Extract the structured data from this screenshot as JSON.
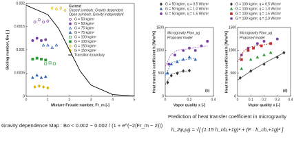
{
  "chart_data": [
    {
      "type": "scatter",
      "x_label": "Mixture Froude number, Fr_m [-]",
      "y_label": "Boiling number, Bo [-]",
      "annotations": [
        "Current",
        "Closed symbols: Gravity dependent",
        "Open symbols: Gravity independent"
      ],
      "xlim": [
        0,
        5
      ],
      "xticks": [
        0,
        1,
        2,
        3,
        4,
        5
      ],
      "ylim": [
        0,
        0.002
      ],
      "yticks": [
        0,
        0.0005,
        0.001,
        0.0015,
        0.002
      ],
      "series": [
        {
          "name": "G = 50 kg/m²",
          "color": "#7b3fa0",
          "marker": "circle",
          "filled": false,
          "x": [
            0.4,
            0.6,
            0.8,
            1.0
          ],
          "values": [
            0.0016,
            0.00165,
            0.0016,
            0.00162
          ]
        },
        {
          "name": "G = 50 kg/m²",
          "color": "#7b3fa0",
          "marker": "circle",
          "filled": true,
          "x": [
            0.3,
            0.5,
            0.7,
            0.9
          ],
          "values": [
            0.0012,
            0.00125,
            0.0012,
            0.00122
          ]
        },
        {
          "name": "G = 75 kg/m²",
          "color": "#2e5fb0",
          "marker": "triangle",
          "filled": false,
          "x": [
            0.8,
            1.0,
            1.2,
            1.4
          ],
          "values": [
            0.0011,
            0.0011,
            0.00105,
            0.0011
          ]
        },
        {
          "name": "G = 75 kg/m²",
          "color": "#2e5fb0",
          "marker": "triangle",
          "filled": true,
          "x": [
            0.3,
            0.5,
            0.7,
            0.9
          ],
          "values": [
            0.0004,
            0.00045,
            0.0004,
            0.00042
          ]
        },
        {
          "name": "G = 100 kg/m²",
          "color": "#2e9a3a",
          "marker": "square",
          "filled": false,
          "x": [
            0.9,
            1.1,
            1.3
          ],
          "values": [
            0.0007,
            0.00072,
            0.0007
          ]
        },
        {
          "name": "G = 100 kg/m²",
          "color": "#2e9a3a",
          "marker": "square",
          "filled": true,
          "x": [
            0.3,
            0.5,
            0.7,
            0.9
          ],
          "values": [
            0.0008,
            0.00082,
            0.0008,
            0.00078
          ]
        },
        {
          "name": "G = 150 kg/m²",
          "color": "#d8b400",
          "marker": "diamond",
          "filled": false,
          "x": [
            1.2,
            1.4,
            1.6,
            1.8
          ],
          "values": [
            0.0019,
            0.00188,
            0.0019,
            0.00185
          ]
        },
        {
          "name": "G = 150 kg/m²",
          "color": "#d8b400",
          "marker": "diamond",
          "filled": true,
          "x": [
            0.4,
            0.6,
            0.8,
            1.0
          ],
          "values": [
            0.0002,
            0.00022,
            0.0002,
            0.00018
          ]
        },
        {
          "name": "Transition boundary",
          "color": "#000000",
          "marker": "line",
          "x": [
            0,
            1,
            1.5,
            2,
            2.5,
            3,
            4,
            5
          ],
          "values": [
            0.00196,
            0.00176,
            0.00146,
            0.001,
            0.00054,
            0.00024,
            3.6e-05,
            5e-06
          ]
        }
      ]
    },
    {
      "type": "scatter",
      "x_label": "Vapor quality  x  [-]",
      "y_label": "Heat transfer coefficient  h  [W/m²K]",
      "annotations": [
        "Microgravity Flow_μg",
        "Proposed model",
        "(b)"
      ],
      "xlim": [
        0,
        0.4
      ],
      "xticks": [
        0,
        0.2,
        0.4
      ],
      "ylim": [
        0,
        1500
      ],
      "yticks": [
        0,
        500,
        1000,
        1500
      ],
      "series": [
        {
          "name": "G = 50 kg/m², q = 0.5 W/cm²",
          "color": "#333333",
          "marker": "diamond",
          "filled": true,
          "x": [
            0.02,
            0.05,
            0.1,
            0.15,
            0.2
          ],
          "values": [
            300,
            450,
            500,
            550,
            560
          ]
        },
        {
          "name": "G = 50 kg/m², q = 1.0 W/cm²",
          "color": "#2e5fb0",
          "marker": "triangle",
          "filled": true,
          "x": [
            0.02,
            0.05,
            0.1,
            0.15,
            0.2,
            0.25
          ],
          "values": [
            500,
            700,
            750,
            800,
            850,
            800
          ]
        },
        {
          "name": "G = 50 kg/m², q = 1.5 W/cm²",
          "color": "#7b3fa0",
          "marker": "circle",
          "filled": true,
          "x": [
            0.03,
            0.08,
            0.15,
            0.2,
            0.25,
            0.3,
            0.35
          ],
          "values": [
            700,
            900,
            1000,
            1050,
            1000,
            1100,
            1200
          ]
        },
        {
          "color": "#555555",
          "marker": "line",
          "dash": true,
          "x": [
            0,
            0.05,
            0.1,
            0.2
          ],
          "values": [
            250,
            480,
            520,
            560
          ]
        },
        {
          "color": "#4a8fd8",
          "marker": "line",
          "dash": true,
          "x": [
            0,
            0.05,
            0.1,
            0.25
          ],
          "values": [
            450,
            720,
            780,
            820
          ]
        },
        {
          "color": "#b06ad0",
          "marker": "line",
          "dash": true,
          "x": [
            0,
            0.05,
            0.1,
            0.35
          ],
          "values": [
            650,
            920,
            1000,
            1100
          ]
        }
      ]
    },
    {
      "type": "scatter",
      "x_label": "Vapor quality  x  [-]",
      "y_label": "Heat transfer coefficient  h  [W/m²K]",
      "annotations": [
        "Microgravity Flow_μg",
        "Proposed model",
        "(d)"
      ],
      "xlim": [
        0,
        0.4
      ],
      "xticks": [
        0,
        0.1,
        0.2,
        0.3,
        0.4
      ],
      "ylim": [
        0,
        1500
      ],
      "yticks": [
        0,
        500,
        1000,
        1500
      ],
      "series": [
        {
          "name": "G = 100 kg/m², q = 0.5 W/cm²",
          "color": "#333333",
          "marker": "diamond",
          "filled": true,
          "x": [
            0.02,
            0.1,
            0.2,
            0.3,
            0.35
          ],
          "values": [
            400,
            550,
            700,
            850,
            950
          ]
        },
        {
          "name": "G = 100 kg/m², q = 1.0 W/cm²",
          "color": "#2e9a3a",
          "marker": "triangle",
          "filled": true,
          "x": [
            0.03,
            0.1,
            0.15,
            0.2,
            0.25
          ],
          "values": [
            600,
            800,
            850,
            900,
            950
          ]
        },
        {
          "name": "G = 100 kg/m², q = 1.5 W/cm²",
          "color": "#c0302a",
          "marker": "square",
          "filled": true,
          "x": [
            0.03,
            0.08,
            0.12,
            0.18,
            0.25
          ],
          "values": [
            800,
            1000,
            1050,
            1100,
            1150
          ]
        },
        {
          "name": "G = 100 kg/m², q = 2.0 W/cm²",
          "color": "#7b3fa0",
          "marker": "circle",
          "filled": true,
          "x": [
            0.03,
            0.08,
            0.15,
            0.2,
            0.3
          ],
          "values": [
            900,
            1050,
            1150,
            1200,
            1250
          ]
        },
        {
          "color": "#555555",
          "marker": "line",
          "x": [
            0,
            0.1,
            0.2,
            0.35
          ],
          "values": [
            350,
            550,
            720,
            950
          ]
        },
        {
          "color": "#c0302a",
          "marker": "line",
          "dash": true,
          "x": [
            0,
            0.05,
            0.1,
            0.25
          ],
          "values": [
            750,
            1000,
            1080,
            1150
          ]
        }
      ]
    }
  ],
  "captions": {
    "map": "Gravity dependence Map : Bo < 0.002 − 0.002 / (1 + e^(−2(Fr_m − 2)))",
    "prediction_title": "Prediction of heat transfer coefficient in microgravity",
    "prediction_formula": "h_2φ,μg = √[ (1.15 h_nb,+1g)² + (F · h_cb,+1g)² ]"
  }
}
